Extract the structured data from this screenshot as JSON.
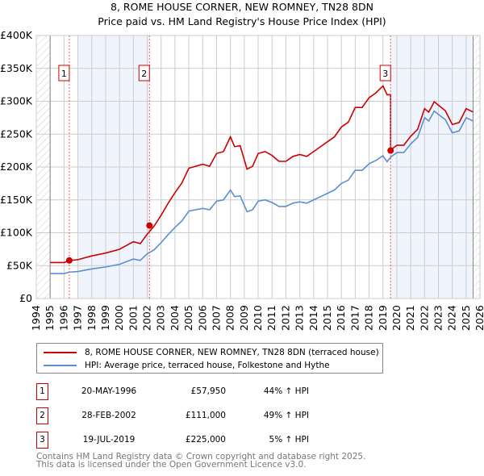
{
  "chart_data": {
    "type": "line",
    "title": "8, ROME HOUSE CORNER, NEW ROMNEY, TN28 8DN",
    "subtitle": "Price paid vs. HM Land Registry's House Price Index (HPI)",
    "xlim": [
      1994,
      2026
    ],
    "ylim": [
      0,
      400000
    ],
    "x_ticks": [
      "1994",
      "1995",
      "1996",
      "1997",
      "1998",
      "1999",
      "2000",
      "2001",
      "2002",
      "2003",
      "2004",
      "2005",
      "2006",
      "2007",
      "2008",
      "2009",
      "2010",
      "2011",
      "2012",
      "2013",
      "2014",
      "2015",
      "2016",
      "2017",
      "2018",
      "2019",
      "2020",
      "2021",
      "2022",
      "2023",
      "2024",
      "2025",
      "2026"
    ],
    "y_ticks": [
      {
        "v": 0,
        "l": "£0"
      },
      {
        "v": 50000,
        "l": "£50K"
      },
      {
        "v": 100000,
        "l": "£100K"
      },
      {
        "v": 150000,
        "l": "£150K"
      },
      {
        "v": 200000,
        "l": "£200K"
      },
      {
        "v": 250000,
        "l": "£250K"
      },
      {
        "v": 300000,
        "l": "£300K"
      },
      {
        "v": 350000,
        "l": "£350K"
      },
      {
        "v": 400000,
        "l": "£400K"
      }
    ],
    "grid": true,
    "colors": {
      "property": "#cc0000",
      "hpi": "#5b8fd0",
      "band": "#f0f4fc"
    },
    "hpi": {
      "x": [
        1995,
        1996,
        1996.4,
        1997,
        1998,
        1999,
        2000,
        2001,
        2001.5,
        2002,
        2002.5,
        2003,
        2003.5,
        2004,
        2004.5,
        2005,
        2006,
        2006.5,
        2007,
        2007.5,
        2008,
        2008.3,
        2008.7,
        2009.2,
        2009.6,
        2010,
        2010.5,
        2011,
        2011.5,
        2012,
        2012.5,
        2013,
        2013.5,
        2014,
        2014.5,
        2015,
        2015.5,
        2016,
        2016.5,
        2017,
        2017.5,
        2018,
        2018.5,
        2019,
        2019.3,
        2019.55,
        2020,
        2020.5,
        2021,
        2021.5,
        2022,
        2022.3,
        2022.7,
        2023,
        2023.5,
        2024,
        2024.5,
        2025,
        2025.5
      ],
      "y": [
        38000,
        38000,
        40200,
        41000,
        45000,
        48000,
        52000,
        60000,
        58000,
        68000,
        74000,
        85000,
        97000,
        108000,
        118000,
        133000,
        137000,
        135000,
        148000,
        150000,
        165000,
        155000,
        156000,
        132000,
        135000,
        148000,
        150000,
        146000,
        140000,
        140000,
        145000,
        147000,
        145000,
        150000,
        155000,
        160000,
        165000,
        175000,
        180000,
        195000,
        195000,
        205000,
        210000,
        217000,
        208000,
        215000,
        222000,
        222000,
        235000,
        245000,
        275000,
        270000,
        285000,
        280000,
        272000,
        252000,
        255000,
        275000,
        270000
      ]
    },
    "sales": [
      {
        "num": "1",
        "date": "20-MAY-1996",
        "year": 1996.38,
        "price": 57950,
        "price_label": "£57,950",
        "hpi_label": "44% ↑ HPI",
        "factor": 1.44
      },
      {
        "num": "2",
        "date": "28-FEB-2002",
        "year": 2002.16,
        "price": 111000,
        "price_label": "£111,000",
        "hpi_label": "49% ↑ HPI",
        "factor": 1.49
      },
      {
        "num": "3",
        "date": "19-JUL-2019",
        "year": 2019.55,
        "price": 225000,
        "price_label": "£225,000",
        "hpi_label": "5% ↑ HPI",
        "factor": 1.05
      }
    ],
    "legend": {
      "property": "8, ROME HOUSE CORNER, NEW ROMNEY, TN28 8DN (terraced house)",
      "hpi": "HPI: Average price, terraced house, Folkestone and Hythe"
    },
    "data_end": 2025.5
  },
  "footer": {
    "line1": "Contains HM Land Registry data © Crown copyright and database right 2025.",
    "line2": "This data is licensed under the Open Government Licence v3.0."
  }
}
